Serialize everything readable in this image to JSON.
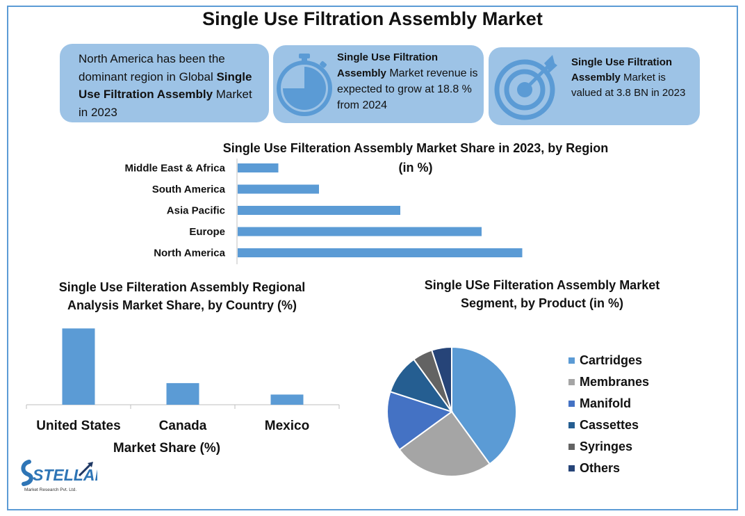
{
  "title": "Single Use Filtration Assembly Market",
  "cards": [
    {
      "pre": "North America has been the dominant region in Global ",
      "bold": "Single Use Filtration Assembly",
      "post": " Market in 2023",
      "icon": "none"
    },
    {
      "pre": "",
      "bold": "Single Use Filtration Assembly",
      "post": " Market revenue is expected to grow at 18.8 % from 2024",
      "icon": "stopwatch-icon"
    },
    {
      "pre": "",
      "bold": "Single Use Filtration Assembly",
      "post": " Market is valued at 3.8 BN in 2023",
      "icon": "target-icon"
    }
  ],
  "logo": {
    "name": "STELLAR",
    "subtitle": "Market Research Pvt. Ltd."
  },
  "colors": {
    "bar": "#5b9bd5",
    "card": "#9dc3e6",
    "border": "#5b9bd5"
  },
  "chart_data": [
    {
      "type": "bar",
      "orientation": "horizontal",
      "title": "Single Use Filteration Assembly Market Share in 2023, by Region",
      "subtitle": "(in %)",
      "categories": [
        "Middle East & Africa",
        "South America",
        "Asia Pacific",
        "Europe",
        "North America"
      ],
      "values": [
        5,
        10,
        20,
        30,
        35
      ],
      "xlim": [
        0,
        40
      ],
      "grid": false
    },
    {
      "type": "bar",
      "title": "Single Use Filteration Assembly Regional Analysis Market Share, by Country (%)",
      "categories": [
        "United States",
        "Canada",
        "Mexico"
      ],
      "values": [
        60,
        17,
        8
      ],
      "ylim": [
        0,
        70
      ],
      "xlabel": "Market Share (%)",
      "grid": false
    },
    {
      "type": "pie",
      "title": "Single USe Filteration Assembly Market Segment, by Product (in %)",
      "legend_position": "right",
      "slices": [
        {
          "label": "Cartridges",
          "value": 40,
          "color": "#5b9bd5"
        },
        {
          "label": "Membranes",
          "value": 25,
          "color": "#a5a5a5"
        },
        {
          "label": "Manifold",
          "value": 15,
          "color": "#4472c4"
        },
        {
          "label": "Cassettes",
          "value": 10,
          "color": "#255e91"
        },
        {
          "label": "Syringes",
          "value": 5,
          "color": "#636363"
        },
        {
          "label": "Others",
          "value": 5,
          "color": "#264478"
        }
      ]
    }
  ]
}
